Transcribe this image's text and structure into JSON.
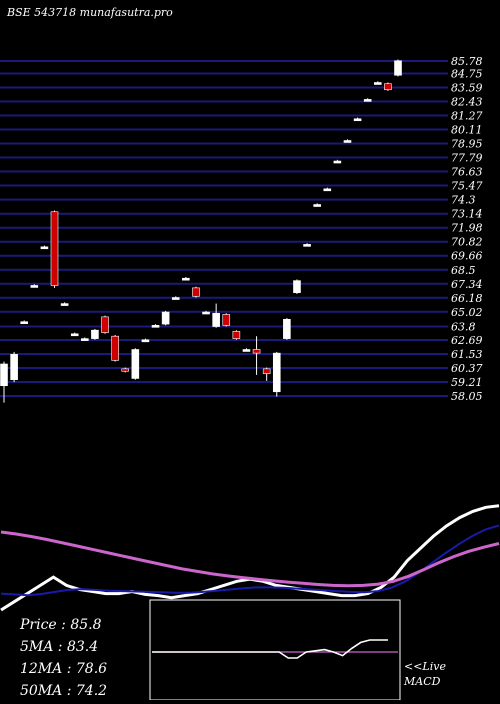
{
  "header": {
    "title": "BSE 543718 munafasutra.pro"
  },
  "colors": {
    "background": "#000000",
    "grid_line": "#1a1a7a",
    "price_text": "#ffffff",
    "candle_up": "#ffffff",
    "candle_down": "#cc0000",
    "ma_short": "#ffffff",
    "ma_mid": "#1a1aaa",
    "ma_long": "#cc66cc",
    "signal": "#ffffff"
  },
  "stats": {
    "price": "Price   : 85.8",
    "ma5": "5MA : 83.4",
    "ma12": "12MA : 78.6",
    "ma50": "50MA : 74.2"
  },
  "macd_label": {
    "line1": "<<Live",
    "line2": "MACD"
  },
  "chart_data": {
    "type": "candlestick",
    "title": "BSE 543718 munafasutra.pro",
    "y_ticks": [
      85.78,
      84.75,
      83.59,
      82.43,
      81.27,
      80.11,
      78.95,
      77.79,
      76.63,
      75.47,
      74.3,
      73.14,
      71.98,
      70.82,
      69.66,
      68.5,
      67.34,
      66.18,
      65.02,
      63.8,
      62.69,
      61.53,
      60.37,
      59.21,
      58.05
    ],
    "y_range": [
      58.05,
      85.78
    ],
    "candles": [
      {
        "o": 58.9,
        "c": 60.7,
        "h": 60.9,
        "l": 57.5
      },
      {
        "o": 59.4,
        "c": 61.5,
        "h": 61.7,
        "l": 59.2
      },
      {
        "o": 64.2,
        "c": 64.2,
        "h": 64.3,
        "l": 64.1
      },
      {
        "o": 67.2,
        "c": 67.2,
        "h": 67.3,
        "l": 67.1
      },
      {
        "o": 70.4,
        "c": 70.4,
        "h": 70.5,
        "l": 70.3
      },
      {
        "o": 73.3,
        "c": 67.2,
        "h": 73.4,
        "l": 67.0
      },
      {
        "o": 65.7,
        "c": 65.7,
        "h": 65.8,
        "l": 65.6
      },
      {
        "o": 63.2,
        "c": 63.2,
        "h": 63.3,
        "l": 63.1
      },
      {
        "o": 62.8,
        "c": 62.8,
        "h": 62.9,
        "l": 62.7
      },
      {
        "o": 62.8,
        "c": 63.5,
        "h": 63.6,
        "l": 62.7
      },
      {
        "o": 64.6,
        "c": 63.3,
        "h": 64.7,
        "l": 63.2
      },
      {
        "o": 63.0,
        "c": 61.0,
        "h": 63.1,
        "l": 60.9
      },
      {
        "o": 60.3,
        "c": 60.1,
        "h": 60.4,
        "l": 60.0
      },
      {
        "o": 59.5,
        "c": 61.9,
        "h": 62.0,
        "l": 59.4
      },
      {
        "o": 62.7,
        "c": 62.7,
        "h": 62.8,
        "l": 62.6
      },
      {
        "o": 63.9,
        "c": 63.9,
        "h": 64.0,
        "l": 63.8
      },
      {
        "o": 64.0,
        "c": 65.0,
        "h": 65.1,
        "l": 63.9
      },
      {
        "o": 66.2,
        "c": 66.2,
        "h": 66.3,
        "l": 66.1
      },
      {
        "o": 67.8,
        "c": 67.8,
        "h": 67.9,
        "l": 67.7
      },
      {
        "o": 67.0,
        "c": 66.3,
        "h": 67.1,
        "l": 66.2
      },
      {
        "o": 65.0,
        "c": 65.0,
        "h": 65.1,
        "l": 64.9
      },
      {
        "o": 63.8,
        "c": 64.9,
        "h": 65.7,
        "l": 63.7
      },
      {
        "o": 64.8,
        "c": 63.9,
        "h": 64.9,
        "l": 63.8
      },
      {
        "o": 63.4,
        "c": 62.8,
        "h": 63.5,
        "l": 62.7
      },
      {
        "o": 61.9,
        "c": 61.9,
        "h": 62.0,
        "l": 61.8
      },
      {
        "o": 61.9,
        "c": 61.6,
        "h": 63.0,
        "l": 59.8
      },
      {
        "o": 60.3,
        "c": 59.9,
        "h": 60.4,
        "l": 59.3
      },
      {
        "o": 58.4,
        "c": 61.6,
        "h": 61.7,
        "l": 58.0
      },
      {
        "o": 62.8,
        "c": 64.4,
        "h": 64.5,
        "l": 62.7
      },
      {
        "o": 66.6,
        "c": 67.6,
        "h": 67.7,
        "l": 66.5
      },
      {
        "o": 70.6,
        "c": 70.6,
        "h": 70.7,
        "l": 70.5
      },
      {
        "o": 73.9,
        "c": 73.9,
        "h": 74.0,
        "l": 73.8
      },
      {
        "o": 75.2,
        "c": 75.2,
        "h": 75.3,
        "l": 75.1
      },
      {
        "o": 77.5,
        "c": 77.5,
        "h": 77.6,
        "l": 77.4
      },
      {
        "o": 79.2,
        "c": 79.2,
        "h": 79.3,
        "l": 79.1
      },
      {
        "o": 81.0,
        "c": 81.0,
        "h": 81.1,
        "l": 80.9
      },
      {
        "o": 82.6,
        "c": 82.6,
        "h": 82.7,
        "l": 82.5
      },
      {
        "o": 84.0,
        "c": 84.0,
        "h": 84.1,
        "l": 83.9
      },
      {
        "o": 83.9,
        "c": 83.4,
        "h": 84.0,
        "l": 83.3
      },
      {
        "o": 84.6,
        "c": 85.8,
        "h": 85.9,
        "l": 84.5
      }
    ],
    "moving_averages": [
      {
        "name": "5MA",
        "values": [
          58,
          60,
          62,
          64,
          66,
          64,
          63,
          62.5,
          62,
          62,
          62.5,
          61.8,
          61.5,
          61,
          61.5,
          62,
          63,
          64,
          65,
          65.5,
          65,
          64,
          63.5,
          63,
          62.5,
          62,
          61.5,
          61.5,
          62,
          63.5,
          66,
          70,
          73,
          76,
          78.5,
          80.5,
          82,
          83,
          83.4
        ]
      },
      {
        "name": "12MA",
        "values": [
          62,
          61.8,
          61.6,
          61.9,
          62.4,
          62.9,
          63.1,
          62.9,
          62.7,
          62.6,
          62.5,
          62.4,
          62.3,
          62.2,
          62.2,
          62.4,
          62.7,
          63.0,
          63.3,
          63.5,
          63.5,
          63.4,
          63.2,
          63.0,
          62.8,
          62.6,
          62.4,
          62.3,
          62.6,
          63.4,
          64.9,
          67.0,
          69.4,
          71.8,
          74.0,
          76.0,
          77.6,
          78.6
        ]
      },
      {
        "name": "50MA",
        "values": [
          77,
          76.5,
          75.9,
          75.2,
          74.4,
          73.6,
          72.8,
          72.0,
          71.2,
          70.4,
          69.6,
          68.8,
          68.0,
          67.4,
          66.8,
          66.3,
          65.9,
          65.5,
          65.1,
          64.8,
          64.5,
          64.2,
          64.0,
          63.9,
          64.0,
          64.3,
          65.0,
          66.2,
          67.8,
          69.5,
          71.0,
          72.3,
          73.3,
          74.2
        ]
      }
    ],
    "macd": {
      "histogram": [
        0,
        0,
        0,
        0,
        0,
        0,
        0,
        0,
        0,
        0,
        0,
        0,
        0,
        0,
        0,
        -0.5,
        -0.5,
        0,
        0.1,
        0.2,
        0,
        -0.3,
        0.3,
        0.8,
        1.0,
        1.0,
        1.0
      ],
      "signal": [
        0,
        0,
        0,
        0,
        0,
        0,
        0,
        0,
        0,
        0,
        0,
        0,
        0,
        0,
        0,
        0,
        0,
        0,
        0,
        0,
        0,
        0,
        0,
        0,
        0,
        0,
        0
      ]
    }
  }
}
